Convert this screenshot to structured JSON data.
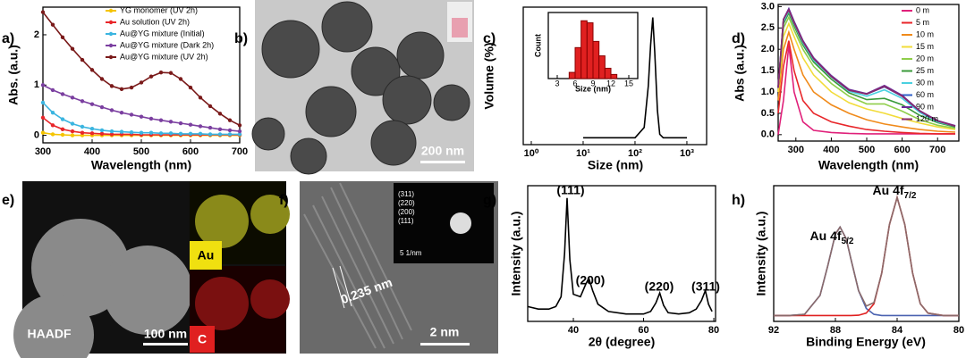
{
  "chart_data": [
    {
      "type": "line",
      "label": "a)",
      "xlabel": "Wavelength (nm)",
      "ylabel": "Abs. (a.u.)",
      "x": [
        300,
        320,
        340,
        360,
        380,
        400,
        420,
        440,
        460,
        480,
        500,
        520,
        540,
        560,
        580,
        600,
        620,
        640,
        660,
        680,
        700
      ],
      "xlim": [
        300,
        700
      ],
      "xticks": [
        300,
        400,
        500,
        600,
        700
      ],
      "ylim": [
        -0.15,
        2.55
      ],
      "yticks": [
        0,
        1,
        2
      ],
      "legend": "upper right",
      "markers": true,
      "series": [
        {
          "name": "YG monomer (UV 2h)",
          "color": "#f5c400",
          "values": [
            0.05,
            0.02,
            0.01,
            0,
            0,
            0,
            0,
            0,
            0,
            0,
            0,
            0,
            0,
            0,
            0,
            0,
            0,
            0,
            0,
            0,
            0
          ]
        },
        {
          "name": "Au solution (UV 2h)",
          "color": "#e8262a",
          "values": [
            0.35,
            0.2,
            0.12,
            0.08,
            0.05,
            0.04,
            0.03,
            0.02,
            0.02,
            0.02,
            0.01,
            0.01,
            0.01,
            0.01,
            0.01,
            0.01,
            0.01,
            0.01,
            0.01,
            0.01,
            0.01
          ]
        },
        {
          "name": "Au@YG mixture (Initial)",
          "color": "#3bb5e0",
          "values": [
            0.65,
            0.45,
            0.32,
            0.23,
            0.17,
            0.13,
            0.1,
            0.08,
            0.07,
            0.06,
            0.05,
            0.05,
            0.04,
            0.04,
            0.03,
            0.03,
            0.03,
            0.02,
            0.02,
            0.02,
            0.02
          ]
        },
        {
          "name": "Au@YG mixture (Dark 2h)",
          "color": "#7b3fa0",
          "values": [
            1.0,
            0.9,
            0.82,
            0.75,
            0.68,
            0.62,
            0.56,
            0.5,
            0.45,
            0.41,
            0.37,
            0.33,
            0.3,
            0.27,
            0.24,
            0.21,
            0.18,
            0.15,
            0.12,
            0.1,
            0.08
          ]
        },
        {
          "name": "Au@YG mixture (UV 2h)",
          "color": "#7a1a1a",
          "values": [
            2.45,
            2.2,
            1.95,
            1.72,
            1.5,
            1.3,
            1.12,
            0.98,
            0.92,
            0.95,
            1.05,
            1.17,
            1.25,
            1.24,
            1.12,
            0.95,
            0.75,
            0.58,
            0.43,
            0.3,
            0.2
          ]
        }
      ]
    },
    {
      "type": "line",
      "label": "c)",
      "xlabel": "Size (nm)",
      "ylabel": "Volume (%)",
      "log_x": true,
      "x": [
        10,
        100,
        150,
        180,
        200,
        220,
        240,
        270,
        300,
        350,
        1000
      ],
      "xlim": [
        0.7,
        2400
      ],
      "xticks": [
        {
          "value": 1,
          "label": "10⁰"
        },
        {
          "value": 10,
          "label": "10¹"
        },
        {
          "value": 100,
          "label": "10²"
        },
        {
          "value": 1000,
          "label": "10³"
        }
      ],
      "ylim": [
        -2,
        38
      ],
      "series": [
        {
          "color": "#000000",
          "values": [
            0,
            0,
            3,
            15,
            27,
            35,
            25,
            8,
            1,
            0,
            0
          ]
        }
      ]
    },
    {
      "type": "histogram",
      "xlabel": "Size (nm)",
      "ylabel": "Count",
      "color": "#e02020",
      "bins": [
        5,
        6,
        7,
        8,
        9,
        10,
        11,
        12,
        13
      ],
      "values": [
        3,
        15,
        28,
        27,
        18,
        11,
        5,
        2
      ],
      "xlim": [
        1.5,
        16.5
      ],
      "xticks": [
        3,
        6,
        9,
        12,
        15
      ],
      "ylim": [
        0,
        32
      ]
    },
    {
      "type": "line",
      "label": "d)",
      "xlabel": "Wavelength (nm)",
      "ylabel": "Abs (a.u.)",
      "x": [
        250,
        265,
        280,
        295,
        320,
        350,
        400,
        450,
        500,
        550,
        600,
        650,
        700,
        750
      ],
      "xlim": [
        250,
        760
      ],
      "xticks": [
        300,
        400,
        500,
        600,
        700
      ],
      "ylim": [
        -0.15,
        3.05
      ],
      "yticks": [
        {
          "value": 0,
          "label": "0.0"
        },
        0.5,
        {
          "value": 1,
          "label": "1.0"
        },
        1.5,
        {
          "value": 2,
          "label": "2.0"
        },
        2.5,
        {
          "value": 3,
          "label": "3.0"
        }
      ],
      "legend": "right",
      "series": [
        {
          "name": "0 m",
          "color": "#e0207a",
          "values": [
            0,
            0.8,
            2.1,
            1.0,
            0.3,
            0.1,
            0.05,
            0.03,
            0.02,
            0.02,
            0.02,
            0.02,
            0.02,
            0.02
          ]
        },
        {
          "name": "5 m",
          "color": "#e8262a",
          "values": [
            0.5,
            1.6,
            2.2,
            1.5,
            0.8,
            0.5,
            0.3,
            0.2,
            0.12,
            0.08,
            0.05,
            0.03,
            0.02,
            0.02
          ]
        },
        {
          "name": "10 m",
          "color": "#f08a1a",
          "values": [
            0.8,
            2.0,
            2.4,
            2.0,
            1.4,
            1.0,
            0.7,
            0.5,
            0.35,
            0.25,
            0.18,
            0.12,
            0.08,
            0.06
          ]
        },
        {
          "name": "15 m",
          "color": "#f2dc3a",
          "values": [
            1.0,
            2.3,
            2.6,
            2.3,
            1.8,
            1.4,
            1.0,
            0.75,
            0.6,
            0.5,
            0.38,
            0.27,
            0.18,
            0.12
          ]
        },
        {
          "name": "20 m",
          "color": "#8fce4a",
          "values": [
            1.1,
            2.5,
            2.75,
            2.45,
            2.0,
            1.6,
            1.2,
            0.9,
            0.72,
            0.72,
            0.55,
            0.35,
            0.22,
            0.15
          ]
        },
        {
          "name": "25 m",
          "color": "#3a9a3a",
          "values": [
            1.1,
            2.6,
            2.85,
            2.55,
            2.1,
            1.7,
            1.3,
            0.98,
            0.82,
            0.85,
            0.7,
            0.45,
            0.28,
            0.18
          ]
        },
        {
          "name": "30 m",
          "color": "#4ad0e0",
          "values": [
            1.1,
            2.65,
            2.9,
            2.6,
            2.15,
            1.75,
            1.35,
            1.02,
            0.9,
            1.05,
            0.85,
            0.52,
            0.3,
            0.2
          ]
        },
        {
          "name": "60 m",
          "color": "#3060c8",
          "values": [
            1.1,
            2.7,
            2.95,
            2.65,
            2.2,
            1.8,
            1.38,
            1.05,
            0.95,
            1.12,
            0.9,
            0.55,
            0.32,
            0.2
          ]
        },
        {
          "name": "90 m",
          "color": "#6a2a9a",
          "values": [
            1.1,
            2.7,
            2.95,
            2.65,
            2.2,
            1.8,
            1.38,
            1.06,
            0.96,
            1.15,
            0.92,
            0.56,
            0.33,
            0.21
          ]
        },
        {
          "name": "120 m",
          "color": "#8a2a6a",
          "values": [
            1.1,
            2.7,
            2.92,
            2.62,
            2.18,
            1.78,
            1.36,
            1.04,
            0.95,
            1.13,
            0.9,
            0.55,
            0.32,
            0.2
          ]
        }
      ]
    },
    {
      "type": "line",
      "label": "g)",
      "xlabel": "2θ  (degree)",
      "ylabel": "Intensity (a.u.)",
      "x": [
        27,
        30,
        33,
        35,
        36.5,
        37.5,
        38.2,
        39,
        40,
        42,
        43.5,
        44.4,
        45.5,
        47,
        50,
        55,
        60,
        62,
        63.5,
        64.6,
        65.7,
        67,
        70,
        73,
        75,
        76.5,
        77.6,
        78.5,
        79.5
      ],
      "xlim": [
        27,
        80.5
      ],
      "xticks": [
        40,
        60,
        80
      ],
      "ylim": [
        0,
        1.1
      ],
      "annotations": [
        "(111)",
        "(200)",
        "(220)",
        "(311)"
      ],
      "series": [
        {
          "color": "#000000",
          "values": [
            0.12,
            0.1,
            0.1,
            0.12,
            0.2,
            0.55,
            1.0,
            0.5,
            0.22,
            0.2,
            0.3,
            0.35,
            0.25,
            0.14,
            0.08,
            0.06,
            0.06,
            0.08,
            0.15,
            0.23,
            0.13,
            0.07,
            0.06,
            0.07,
            0.1,
            0.17,
            0.25,
            0.14,
            0.08
          ]
        }
      ]
    },
    {
      "type": "line",
      "label": "h)",
      "xlabel": "Binding Energy (eV)",
      "ylabel": "Intensity (a.u.)",
      "x": [
        92,
        91,
        90,
        89,
        88.5,
        88,
        87.7,
        87.3,
        87,
        86.5,
        86,
        85.5,
        85,
        84.5,
        84,
        83.5,
        83,
        82.5,
        82,
        81,
        80
      ],
      "xlim": [
        92,
        80
      ],
      "xticks": [
        92,
        88,
        84,
        80
      ],
      "ylim": [
        -0.05,
        1.1
      ],
      "annotations": [
        {
          "text": "Au 4f",
          "sub": "5/2"
        },
        {
          "text": "Au 4f",
          "sub": "7/2"
        }
      ],
      "series": [
        {
          "color": "#4a62b0",
          "values": [
            0,
            0,
            0.01,
            0.17,
            0.42,
            0.69,
            0.75,
            0.65,
            0.48,
            0.21,
            0.06,
            0.01,
            0,
            0,
            0,
            0,
            0,
            0,
            0,
            0,
            0
          ]
        },
        {
          "color": "#e02020",
          "values": [
            0,
            0,
            0,
            0,
            0,
            0,
            0,
            0,
            0,
            0.002,
            0.02,
            0.1,
            0.36,
            0.77,
            1,
            0.77,
            0.36,
            0.1,
            0.02,
            0,
            0
          ]
        },
        {
          "color": "#8a6a6a",
          "values": [
            0,
            0,
            0.01,
            0.17,
            0.42,
            0.69,
            0.75,
            0.65,
            0.48,
            0.21,
            0.08,
            0.11,
            0.36,
            0.77,
            1,
            0.77,
            0.36,
            0.1,
            0.02,
            0,
            0
          ]
        }
      ]
    }
  ],
  "images": {
    "b": {
      "label": "b)",
      "scale_bar": "200 nm"
    },
    "e": {
      "label": "e)",
      "tag": "HAADF",
      "scale_bar": "100 nm",
      "maps": [
        "Au",
        "C"
      ]
    },
    "f": {
      "label": "f)",
      "spacing": "0.235 nm",
      "scale_bar": "2 nm",
      "planes": [
        "(311)",
        "(220)",
        "(200)",
        "(111)"
      ],
      "inset_scale": "5 1/nm"
    }
  }
}
